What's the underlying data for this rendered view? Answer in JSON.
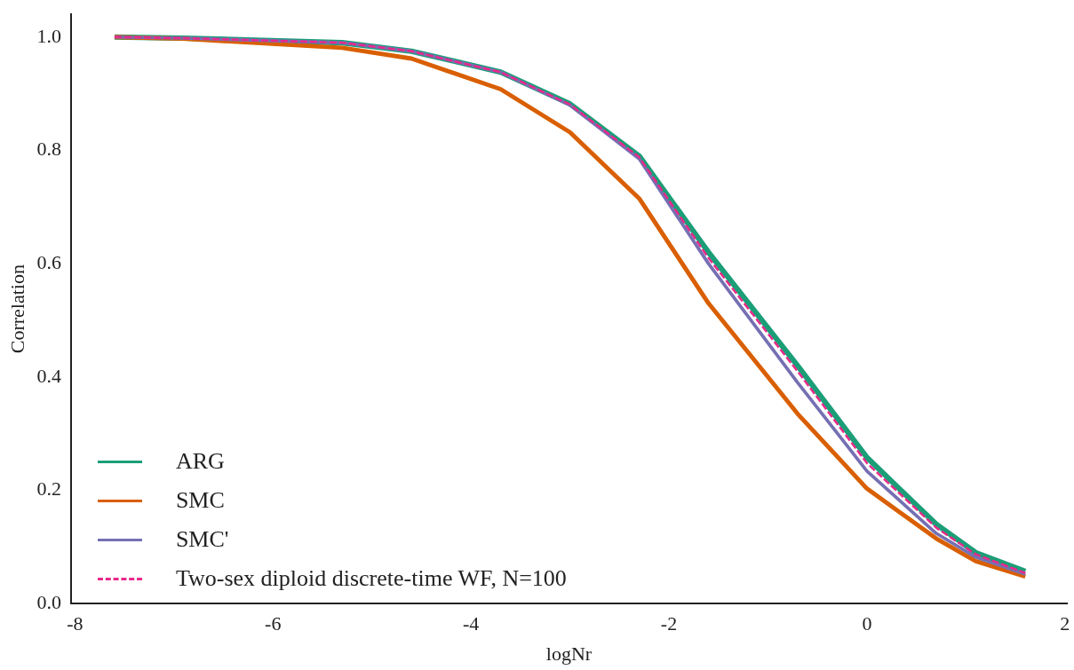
{
  "chart_data": {
    "type": "line",
    "xlabel": "logNr",
    "ylabel": "Correlation",
    "x": [
      -7.6,
      -6.9,
      -5.3,
      -4.6,
      -3.7,
      -3.0,
      -2.3,
      -1.6,
      -0.7,
      0,
      0.7,
      1.1,
      1.6
    ],
    "series": [
      {
        "name": "ARG",
        "color": "#1b9e77",
        "values": [
          1.0,
          0.998,
          0.99,
          0.975,
          0.938,
          0.882,
          0.79,
          0.62,
          0.42,
          0.258,
          0.14,
          0.09,
          0.057
        ]
      },
      {
        "name": "SMC",
        "color": "#d95f02",
        "values": [
          1.0,
          0.997,
          0.981,
          0.962,
          0.908,
          0.832,
          0.715,
          0.53,
          0.335,
          0.203,
          0.115,
          0.075,
          0.048
        ]
      },
      {
        "name": "SMC'",
        "color": "#7570b3",
        "values": [
          1.0,
          0.998,
          0.99,
          0.975,
          0.938,
          0.88,
          0.785,
          0.6,
          0.39,
          0.234,
          0.124,
          0.082,
          0.052
        ]
      },
      {
        "name": "Two-sex diploid discrete-time WF, N=100",
        "color": "#e7298a",
        "line_style": "dashed",
        "values": [
          1.0,
          0.998,
          0.99,
          0.975,
          0.938,
          0.881,
          0.788,
          0.61,
          0.41,
          0.248,
          0.134,
          0.087,
          0.054
        ]
      }
    ],
    "xlim": [
      -8.04,
      2.02
    ],
    "xticks": [
      -8,
      -6,
      -4,
      -2,
      0,
      2
    ],
    "ylim": [
      0,
      1.04
    ],
    "yticks": [
      {
        "value": 0,
        "label": "0.0"
      },
      0.2,
      0.4,
      0.6,
      0.8,
      {
        "value": 1,
        "label": "1.0"
      }
    ],
    "grid": false,
    "legend": "bottom left",
    "marker": "none",
    "line_style": "solid"
  }
}
